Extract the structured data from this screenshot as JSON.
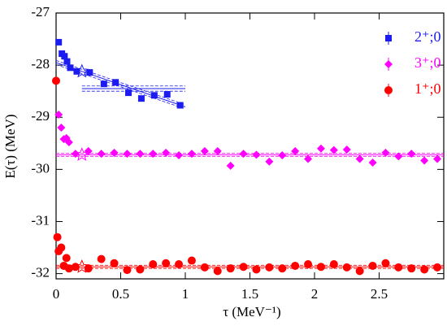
{
  "chart_data": {
    "type": "scatter",
    "xlabel": "τ (MeV⁻¹)",
    "ylabel": "E(τ)  (MeV)",
    "xlim": [
      0,
      3
    ],
    "ylim": [
      -32.1,
      -27
    ],
    "xticks": [
      0,
      0.5,
      1,
      1.5,
      2,
      2.5
    ],
    "yticks": [
      -27,
      -28,
      -29,
      -30,
      -31,
      -32
    ],
    "legend": "upper right",
    "series": [
      {
        "name": "2⁺;0",
        "color": "#1c1cf0",
        "marker": "square",
        "x": [
          0.02,
          0.045,
          0.065,
          0.085,
          0.11,
          0.16,
          0.26,
          0.37,
          0.46,
          0.56,
          0.66,
          0.76,
          0.86,
          0.96
        ],
        "values": [
          -27.56,
          -27.78,
          -27.83,
          -27.93,
          -28.05,
          -28.12,
          -28.14,
          -28.36,
          -28.33,
          -28.53,
          -28.64,
          -28.58,
          -28.56,
          -28.77
        ],
        "fit": {
          "x": [
            0,
            1
          ],
          "y": [
            -27.95,
            -28.8
          ],
          "band": 0.04
        },
        "plateau": {
          "x": [
            0.2,
            1
          ],
          "y": -28.45,
          "err": 0.05
        },
        "star": {
          "x": 0.2,
          "y": -28.12
        }
      },
      {
        "name": "3⁺;0",
        "color": "#ff00ff",
        "marker": "diamond",
        "x": [
          0.02,
          0.04,
          0.06,
          0.08,
          0.1,
          0.15,
          0.25,
          0.35,
          0.45,
          0.55,
          0.65,
          0.75,
          0.85,
          0.95,
          1.05,
          1.15,
          1.25,
          1.35,
          1.45,
          1.55,
          1.65,
          1.75,
          1.85,
          1.95,
          2.05,
          2.15,
          2.25,
          2.35,
          2.45,
          2.55,
          2.65,
          2.75,
          2.85,
          2.95
        ],
        "values": [
          -28.95,
          -29.2,
          -29.42,
          -29.4,
          -29.48,
          -29.7,
          -29.65,
          -29.7,
          -29.68,
          -29.7,
          -29.7,
          -29.7,
          -29.68,
          -29.73,
          -29.7,
          -29.65,
          -29.65,
          -29.93,
          -29.7,
          -29.72,
          -29.85,
          -29.73,
          -29.65,
          -29.8,
          -29.6,
          -29.63,
          -29.62,
          -29.8,
          -29.87,
          -29.68,
          -29.75,
          -29.7,
          -29.83,
          -29.8
        ],
        "fit": {
          "x": [
            0,
            3
          ],
          "y": [
            -29.72,
            -29.72
          ],
          "band": 0.03
        },
        "star": {
          "x": 0.2,
          "y": -29.72
        }
      },
      {
        "name": "1⁺;0",
        "color": "#ff0000",
        "marker": "circle",
        "x": [
          0,
          0.01,
          0.02,
          0.04,
          0.06,
          0.08,
          0.1,
          0.15,
          0.25,
          0.35,
          0.45,
          0.55,
          0.65,
          0.75,
          0.85,
          0.95,
          1.05,
          1.15,
          1.25,
          1.35,
          1.45,
          1.55,
          1.65,
          1.75,
          1.85,
          1.95,
          2.05,
          2.15,
          2.25,
          2.35,
          2.45,
          2.55,
          2.65,
          2.75,
          2.85,
          2.95
        ],
        "values": [
          -28.3,
          -31.3,
          -31.57,
          -31.5,
          -31.85,
          -31.7,
          -31.9,
          -31.87,
          -31.9,
          -31.72,
          -31.8,
          -31.93,
          -31.92,
          -31.82,
          -31.8,
          -31.82,
          -31.75,
          -31.88,
          -31.95,
          -31.9,
          -31.87,
          -31.92,
          -31.88,
          -31.9,
          -31.85,
          -31.82,
          -31.87,
          -31.82,
          -31.88,
          -31.95,
          -31.85,
          -31.8,
          -31.88,
          -31.9,
          -31.92,
          -31.88
        ],
        "fit": {
          "x": [
            0,
            3
          ],
          "y": [
            -31.87,
            -31.87
          ],
          "band": 0.03
        },
        "star": {
          "x": 0.2,
          "y": -31.87
        }
      }
    ]
  }
}
